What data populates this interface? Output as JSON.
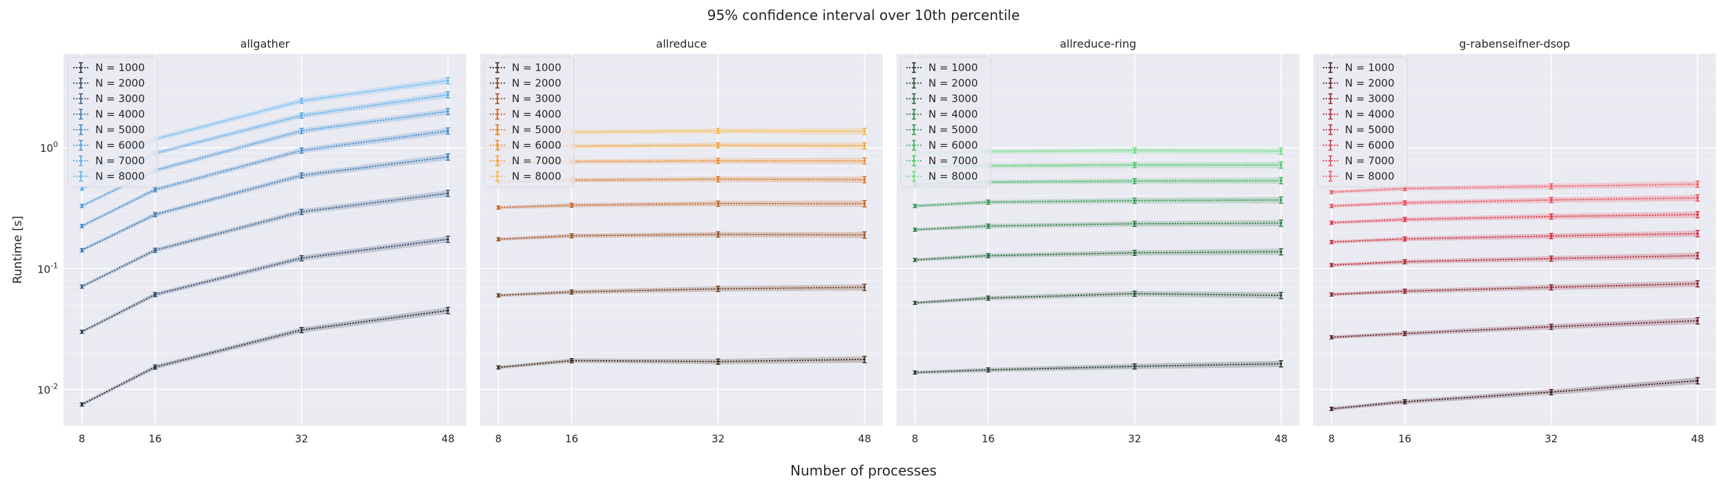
{
  "figure": {
    "suptitle": "95% confidence interval over 10th percentile",
    "xlabel": "Number of processes",
    "ylabel": "Runtime [s]"
  },
  "chart_data": [
    {
      "type": "line",
      "title": "allgather",
      "xscale": "linear",
      "yscale": "log",
      "xticks": [
        8,
        16,
        32,
        48
      ],
      "ytick_labels": [
        "10^-2",
        "10^-1",
        "10^0"
      ],
      "ylim": [
        0.005,
        6
      ],
      "grid": true,
      "legend": "top-left",
      "x": [
        8,
        16,
        32,
        48
      ],
      "series": [
        {
          "name": "N = 1000",
          "color": "#222838",
          "values": [
            0.0075,
            0.0153,
            0.031,
            0.045
          ]
        },
        {
          "name": "N = 2000",
          "color": "#29415f",
          "values": [
            0.03,
            0.061,
            0.122,
            0.175
          ]
        },
        {
          "name": "N = 3000",
          "color": "#2f5a86",
          "values": [
            0.071,
            0.142,
            0.295,
            0.42
          ]
        },
        {
          "name": "N = 4000",
          "color": "#3472a8",
          "values": [
            0.142,
            0.28,
            0.59,
            0.84
          ]
        },
        {
          "name": "N = 5000",
          "color": "#3a85c5",
          "values": [
            0.225,
            0.45,
            0.95,
            1.38
          ]
        },
        {
          "name": "N = 6000",
          "color": "#4096d8",
          "values": [
            0.33,
            0.65,
            1.38,
            2.0
          ]
        },
        {
          "name": "N = 7000",
          "color": "#4aa6e6",
          "values": [
            0.46,
            0.9,
            1.85,
            2.75
          ]
        },
        {
          "name": "N = 8000",
          "color": "#57b6f0",
          "values": [
            0.6,
            1.18,
            2.45,
            3.6
          ]
        }
      ]
    },
    {
      "type": "line",
      "title": "allreduce",
      "xscale": "linear",
      "yscale": "log",
      "xticks": [
        8,
        16,
        32,
        48
      ],
      "ytick_labels": [
        "10^-2",
        "10^-1",
        "10^0"
      ],
      "ylim": [
        0.005,
        6
      ],
      "grid": true,
      "legend": "top-left",
      "x": [
        8,
        16,
        32,
        48
      ],
      "series": [
        {
          "name": "N = 1000",
          "color": "#382310",
          "values": [
            0.0152,
            0.0173,
            0.017,
            0.0177
          ]
        },
        {
          "name": "N = 2000",
          "color": "#6a3712",
          "values": [
            0.06,
            0.064,
            0.068,
            0.07
          ]
        },
        {
          "name": "N = 3000",
          "color": "#9a4a14",
          "values": [
            0.175,
            0.187,
            0.192,
            0.19
          ]
        },
        {
          "name": "N = 4000",
          "color": "#c15d17",
          "values": [
            0.32,
            0.335,
            0.345,
            0.345
          ]
        },
        {
          "name": "N = 5000",
          "color": "#dc7019",
          "values": [
            0.52,
            0.54,
            0.55,
            0.545
          ]
        },
        {
          "name": "N = 6000",
          "color": "#ec861c",
          "values": [
            0.74,
            0.77,
            0.78,
            0.78
          ]
        },
        {
          "name": "N = 7000",
          "color": "#f59c22",
          "values": [
            1.0,
            1.03,
            1.05,
            1.04
          ]
        },
        {
          "name": "N = 8000",
          "color": "#fbb42c",
          "values": [
            1.3,
            1.35,
            1.38,
            1.37
          ]
        }
      ]
    },
    {
      "type": "line",
      "title": "allreduce-ring",
      "xscale": "linear",
      "yscale": "log",
      "xticks": [
        8,
        16,
        32,
        48
      ],
      "ytick_labels": [
        "10^-2",
        "10^-1",
        "10^0"
      ],
      "ylim": [
        0.005,
        6
      ],
      "grid": true,
      "legend": "top-left",
      "x": [
        8,
        16,
        32,
        48
      ],
      "series": [
        {
          "name": "N = 1000",
          "color": "#1c3322",
          "values": [
            0.0138,
            0.0145,
            0.0155,
            0.0163
          ]
        },
        {
          "name": "N = 2000",
          "color": "#1f4a2a",
          "values": [
            0.052,
            0.057,
            0.062,
            0.06
          ]
        },
        {
          "name": "N = 3000",
          "color": "#236234",
          "values": [
            0.118,
            0.128,
            0.135,
            0.138
          ]
        },
        {
          "name": "N = 4000",
          "color": "#287a3e",
          "values": [
            0.21,
            0.225,
            0.235,
            0.238
          ]
        },
        {
          "name": "N = 5000",
          "color": "#2e9448",
          "values": [
            0.33,
            0.355,
            0.365,
            0.37
          ]
        },
        {
          "name": "N = 6000",
          "color": "#36ad53",
          "values": [
            0.5,
            0.52,
            0.53,
            0.535
          ]
        },
        {
          "name": "N = 7000",
          "color": "#44c660",
          "values": [
            0.69,
            0.71,
            0.72,
            0.72
          ]
        },
        {
          "name": "N = 8000",
          "color": "#5ede76",
          "values": [
            0.9,
            0.93,
            0.95,
            0.94
          ]
        }
      ]
    },
    {
      "type": "line",
      "title": "g-rabenseifner-dsop",
      "xscale": "linear",
      "yscale": "log",
      "xticks": [
        8,
        16,
        32,
        48
      ],
      "ytick_labels": [
        "10^-2",
        "10^-1",
        "10^0"
      ],
      "ylim": [
        0.005,
        6
      ],
      "grid": true,
      "legend": "top-left",
      "x": [
        8,
        16,
        32,
        48
      ],
      "series": [
        {
          "name": "N = 1000",
          "color": "#3a1418",
          "values": [
            0.0069,
            0.0079,
            0.0095,
            0.0118
          ]
        },
        {
          "name": "N = 2000",
          "color": "#62181e",
          "values": [
            0.027,
            0.029,
            0.033,
            0.037
          ]
        },
        {
          "name": "N = 3000",
          "color": "#8a1c24",
          "values": [
            0.061,
            0.065,
            0.07,
            0.075
          ]
        },
        {
          "name": "N = 4000",
          "color": "#b0202a",
          "values": [
            0.107,
            0.114,
            0.121,
            0.128
          ]
        },
        {
          "name": "N = 5000",
          "color": "#cf2631",
          "values": [
            0.166,
            0.176,
            0.186,
            0.195
          ]
        },
        {
          "name": "N = 6000",
          "color": "#e32f3a",
          "values": [
            0.24,
            0.255,
            0.27,
            0.28
          ]
        },
        {
          "name": "N = 7000",
          "color": "#ee3e48",
          "values": [
            0.33,
            0.35,
            0.37,
            0.385
          ]
        },
        {
          "name": "N = 8000",
          "color": "#f3525a",
          "values": [
            0.43,
            0.46,
            0.48,
            0.5
          ]
        }
      ]
    }
  ]
}
